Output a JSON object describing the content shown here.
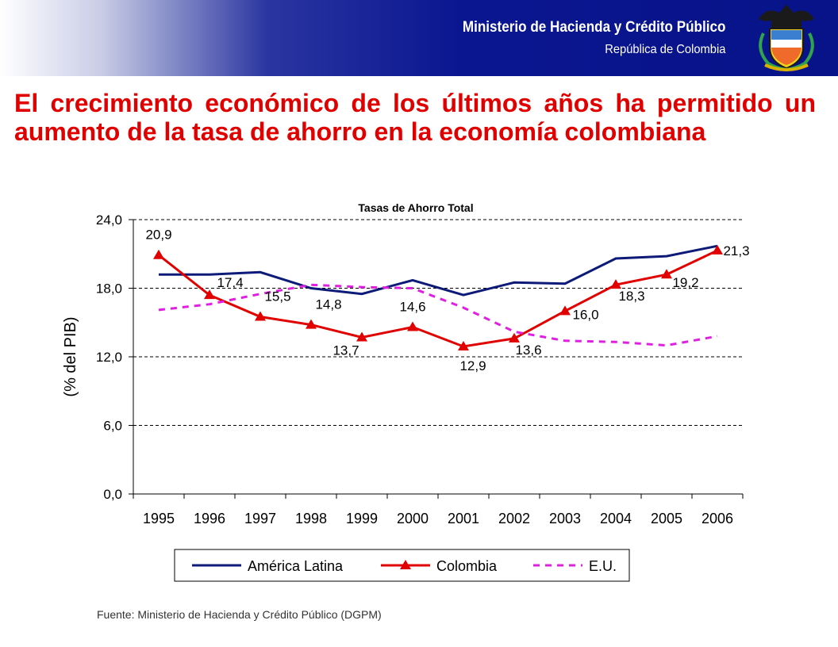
{
  "header": {
    "ministry": "Ministerio de Hacienda y Crédito Público",
    "country": "República de Colombia"
  },
  "slide": {
    "title": "El crecimiento económico de los últimos años ha permitido un aumento de la tasa de ahorro en la economía colombiana"
  },
  "chart_data": {
    "type": "line",
    "title": "Tasas de Ahorro Total",
    "xlabel": "",
    "ylabel": "(% del PIB)",
    "categories": [
      "1995",
      "1996",
      "1997",
      "1998",
      "1999",
      "2000",
      "2001",
      "2002",
      "2003",
      "2004",
      "2005",
      "2006"
    ],
    "ylim": [
      0,
      24
    ],
    "yticks": [
      "0,0",
      "6,0",
      "12,0",
      "18,0",
      "24,0"
    ],
    "grid": true,
    "legend": "bottom",
    "series": [
      {
        "name": "América Latina",
        "color": "#0d1a78",
        "style": "solid",
        "values": [
          19.2,
          19.2,
          19.4,
          18.0,
          17.5,
          18.7,
          17.4,
          18.5,
          18.4,
          20.6,
          20.8,
          21.7
        ]
      },
      {
        "name": "Colombia",
        "color": "#e00000",
        "style": "solid",
        "marker": "triangle",
        "values": [
          20.9,
          17.4,
          15.5,
          14.8,
          13.7,
          14.6,
          12.9,
          13.6,
          16.0,
          18.3,
          19.2,
          21.3
        ],
        "labels": [
          "20,9",
          "17,4",
          "15,5",
          "14,8",
          "13,7",
          "14,6",
          "12,9",
          "13,6",
          "16,0",
          "18,3",
          "19,2",
          "21,3"
        ]
      },
      {
        "name": "E.U.",
        "color": "#e020e0",
        "style": "dashed",
        "values": [
          16.1,
          16.6,
          17.5,
          18.3,
          18.1,
          18.0,
          16.3,
          14.2,
          13.4,
          13.3,
          13.0,
          13.8
        ]
      }
    ]
  },
  "source": "Fuente: Ministerio de Hacienda y Crédito Público (DGPM)"
}
